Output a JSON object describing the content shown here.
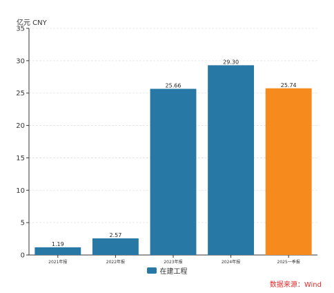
{
  "chart_data": {
    "type": "bar",
    "unit_label": "亿元  CNY",
    "categories": [
      "2021年报",
      "2022年报",
      "2023年报",
      "2024年报",
      "2025一季报"
    ],
    "series": [
      {
        "name": "在建工程",
        "values": [
          1.19,
          2.57,
          25.66,
          29.3,
          25.74
        ]
      }
    ],
    "data_labels": [
      "1.19",
      "2.57",
      "25.66",
      "29.30",
      "25.74"
    ],
    "ylim": [
      0,
      35
    ],
    "yticks": [
      0,
      5,
      10,
      15,
      20,
      25,
      30,
      35
    ],
    "grid": true,
    "legend_position": "bottom-center",
    "colors": {
      "series": "#2878a6",
      "highlight": "#f78a1d",
      "highlight_index": 4,
      "grid": "#e3e3e3",
      "axis": "#333333",
      "source": "#e02a2a"
    }
  },
  "source_text": "数据来源：Wind"
}
